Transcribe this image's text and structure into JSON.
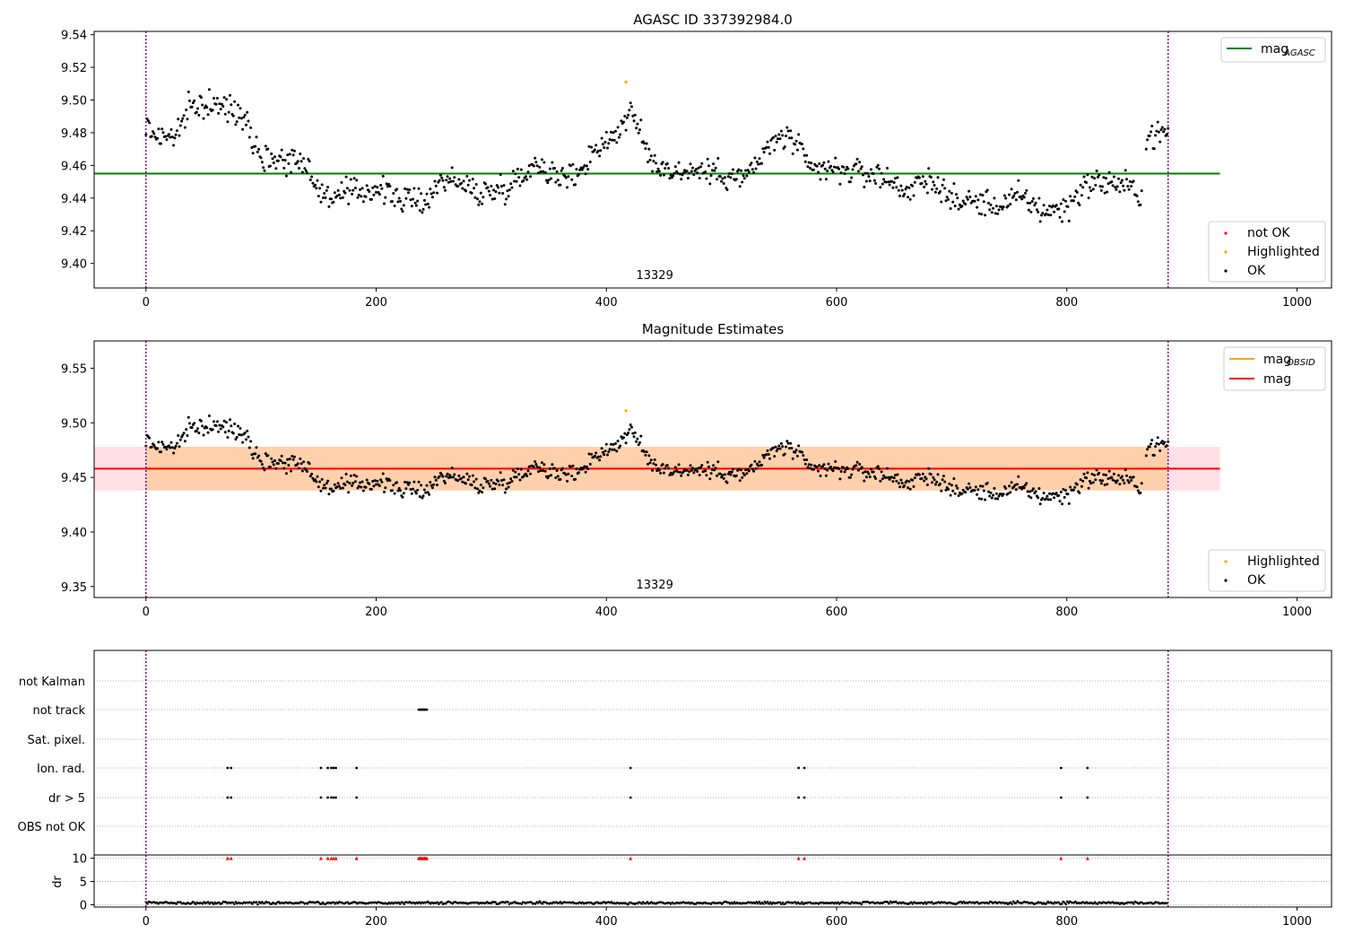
{
  "chart_data": [
    {
      "type": "scatter",
      "title": "AGASC ID 337392984.0",
      "xlim": [
        -45,
        1030
      ],
      "ylim": [
        9.385,
        9.542
      ],
      "xticks": [
        0,
        200,
        400,
        600,
        800,
        1000
      ],
      "yticks": [
        9.4,
        9.42,
        9.44,
        9.46,
        9.48,
        9.5,
        9.52,
        9.54
      ],
      "ytick_decimals": 2,
      "vlines": [
        0,
        888
      ],
      "obsid_label": "13329",
      "obsid_label_x": 442,
      "hlines": [
        {
          "name": "mag_AGASC",
          "y": 9.455,
          "x0": -45,
          "x1": 933,
          "color": "#008000"
        }
      ],
      "legend_lines": [
        {
          "label": "mag",
          "sub": "AGASC",
          "color": "#008000"
        }
      ],
      "legend_points": [
        {
          "label": "not OK",
          "color": "#ff0000"
        },
        {
          "label": "Highlighted",
          "color": "#ffa500"
        },
        {
          "label": "OK",
          "color": "#000000"
        }
      ],
      "series_profile": [
        [
          0,
          9.484
        ],
        [
          10,
          9.478
        ],
        [
          25,
          9.478
        ],
        [
          40,
          9.496
        ],
        [
          55,
          9.497
        ],
        [
          70,
          9.495
        ],
        [
          85,
          9.492
        ],
        [
          100,
          9.465
        ],
        [
          120,
          9.464
        ],
        [
          140,
          9.462
        ],
        [
          150,
          9.443
        ],
        [
          165,
          9.441
        ],
        [
          180,
          9.443
        ],
        [
          200,
          9.446
        ],
        [
          220,
          9.44
        ],
        [
          240,
          9.437
        ],
        [
          260,
          9.453
        ],
        [
          275,
          9.448
        ],
        [
          290,
          9.443
        ],
        [
          305,
          9.445
        ],
        [
          320,
          9.45
        ],
        [
          340,
          9.462
        ],
        [
          360,
          9.452
        ],
        [
          375,
          9.455
        ],
        [
          390,
          9.47
        ],
        [
          410,
          9.48
        ],
        [
          420,
          9.494
        ],
        [
          430,
          9.478
        ],
        [
          440,
          9.462
        ],
        [
          460,
          9.456
        ],
        [
          480,
          9.457
        ],
        [
          500,
          9.455
        ],
        [
          520,
          9.452
        ],
        [
          535,
          9.465
        ],
        [
          550,
          9.478
        ],
        [
          565,
          9.474
        ],
        [
          575,
          9.458
        ],
        [
          600,
          9.457
        ],
        [
          620,
          9.456
        ],
        [
          640,
          9.453
        ],
        [
          660,
          9.445
        ],
        [
          680,
          9.45
        ],
        [
          690,
          9.448
        ],
        [
          700,
          9.438
        ],
        [
          720,
          9.438
        ],
        [
          740,
          9.435
        ],
        [
          760,
          9.441
        ],
        [
          780,
          9.432
        ],
        [
          800,
          9.434
        ],
        [
          815,
          9.448
        ],
        [
          830,
          9.45
        ],
        [
          850,
          9.448
        ],
        [
          865,
          9.442
        ],
        [
          870,
          9.478
        ],
        [
          888,
          9.48
        ]
      ],
      "point_spacing": 1.0,
      "point_scatter": 0.008,
      "highlighted_points": [
        [
          417,
          9.511
        ]
      ],
      "not_ok_points": []
    },
    {
      "type": "scatter",
      "title": "Magnitude Estimates",
      "xlim": [
        -45,
        1030
      ],
      "ylim": [
        9.34,
        9.575
      ],
      "xticks": [
        0,
        200,
        400,
        600,
        800,
        1000
      ],
      "yticks": [
        9.35,
        9.4,
        9.45,
        9.5,
        9.55
      ],
      "ytick_decimals": 2,
      "vlines": [
        0,
        888
      ],
      "obsid_label": "13329",
      "obsid_label_x": 442,
      "bands": [
        {
          "name": "mag_range",
          "y0": 9.438,
          "y1": 9.478,
          "x0": -45,
          "x1": 933,
          "color": "#ffc0cb",
          "opacity": 0.5
        },
        {
          "name": "mag_obsid_range",
          "y0": 9.438,
          "y1": 9.478,
          "x0": 0,
          "x1": 888,
          "color": "#ffa500",
          "opacity": 0.25
        }
      ],
      "hlines": [
        {
          "name": "mag_obsid",
          "y": 9.458,
          "x0": 0,
          "x1": 888,
          "color": "#ffa500"
        },
        {
          "name": "mag",
          "y": 9.458,
          "x0": -45,
          "x1": 933,
          "color": "#ff0000"
        }
      ],
      "legend_lines": [
        {
          "label": "mag",
          "sub": "OBSID",
          "color": "#ffa500"
        },
        {
          "label": "mag",
          "sub": "",
          "color": "#ff0000"
        }
      ],
      "legend_points": [
        {
          "label": "Highlighted",
          "color": "#ffa500"
        },
        {
          "label": "OK",
          "color": "#000000"
        }
      ],
      "series_profile": [
        [
          0,
          9.484
        ],
        [
          10,
          9.478
        ],
        [
          25,
          9.478
        ],
        [
          40,
          9.496
        ],
        [
          55,
          9.497
        ],
        [
          70,
          9.495
        ],
        [
          85,
          9.492
        ],
        [
          100,
          9.465
        ],
        [
          120,
          9.464
        ],
        [
          140,
          9.462
        ],
        [
          150,
          9.443
        ],
        [
          165,
          9.441
        ],
        [
          180,
          9.443
        ],
        [
          200,
          9.446
        ],
        [
          220,
          9.44
        ],
        [
          240,
          9.437
        ],
        [
          260,
          9.453
        ],
        [
          275,
          9.448
        ],
        [
          290,
          9.443
        ],
        [
          305,
          9.445
        ],
        [
          320,
          9.45
        ],
        [
          340,
          9.462
        ],
        [
          360,
          9.452
        ],
        [
          375,
          9.455
        ],
        [
          390,
          9.47
        ],
        [
          410,
          9.48
        ],
        [
          420,
          9.494
        ],
        [
          430,
          9.478
        ],
        [
          440,
          9.462
        ],
        [
          460,
          9.456
        ],
        [
          480,
          9.457
        ],
        [
          500,
          9.455
        ],
        [
          520,
          9.452
        ],
        [
          535,
          9.465
        ],
        [
          550,
          9.478
        ],
        [
          565,
          9.474
        ],
        [
          575,
          9.458
        ],
        [
          600,
          9.457
        ],
        [
          620,
          9.456
        ],
        [
          640,
          9.453
        ],
        [
          660,
          9.445
        ],
        [
          680,
          9.45
        ],
        [
          690,
          9.448
        ],
        [
          700,
          9.438
        ],
        [
          720,
          9.438
        ],
        [
          740,
          9.435
        ],
        [
          760,
          9.441
        ],
        [
          780,
          9.432
        ],
        [
          800,
          9.434
        ],
        [
          815,
          9.448
        ],
        [
          830,
          9.45
        ],
        [
          850,
          9.448
        ],
        [
          865,
          9.442
        ],
        [
          870,
          9.478
        ],
        [
          888,
          9.48
        ]
      ],
      "point_spacing": 1.0,
      "point_scatter": 0.008,
      "highlighted_points": [
        [
          417,
          9.511
        ]
      ]
    },
    {
      "type": "scatter",
      "title": "",
      "xlim": [
        -45,
        1030
      ],
      "categories": [
        "OBS not OK",
        "dr > 5",
        "Ion. rad.",
        "Sat. pixel.",
        "not track",
        "not Kalman"
      ],
      "flag_points": {
        "not track": [
          237,
          238,
          239,
          240,
          241,
          242,
          243,
          244
        ],
        "Ion. rad.": [
          71,
          74,
          152,
          158,
          161,
          163,
          165,
          183,
          421,
          567,
          572,
          795,
          818
        ],
        "dr > 5": [
          71,
          74,
          152,
          158,
          161,
          163,
          165,
          183,
          421,
          567,
          572,
          795,
          818
        ]
      },
      "vlines": [
        0,
        888
      ]
    },
    {
      "type": "scatter",
      "title": "",
      "xlim": [
        -45,
        1030
      ],
      "ylim": [
        -0.5,
        10.7
      ],
      "xticks": [
        0,
        200,
        400,
        600,
        800,
        1000
      ],
      "yticks": [
        0,
        5,
        10
      ],
      "ylabel": "dr",
      "vlines": [
        0,
        888
      ],
      "dr_level": 0.4,
      "dr_scatter": 0.25,
      "dr_point_spacing": 1.2,
      "clipped_points": [
        71,
        74,
        152,
        158,
        161,
        163,
        165,
        183,
        237,
        238,
        239,
        240,
        241,
        242,
        243,
        244,
        421,
        567,
        572,
        795,
        818
      ],
      "clipped_value": 10
    }
  ]
}
